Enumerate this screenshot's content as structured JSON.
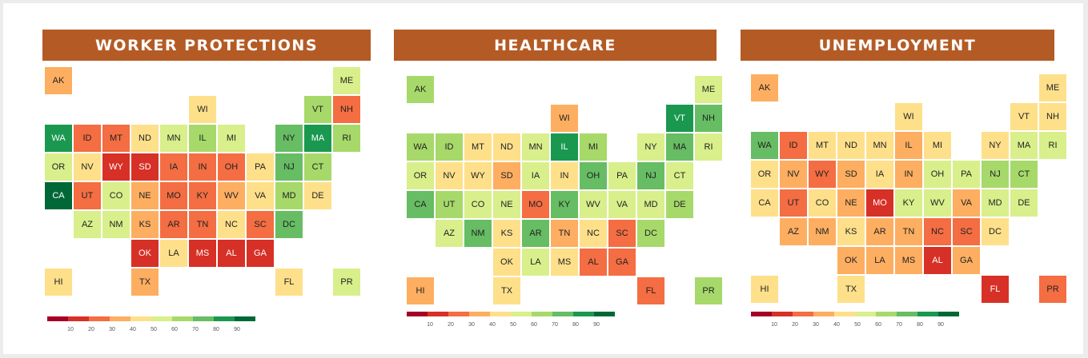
{
  "colors": {
    "scale": [
      "#a50026",
      "#d73027",
      "#f46d43",
      "#fdae61",
      "#fee08b",
      "#d9ef8b",
      "#a6d96a",
      "#66bd63",
      "#1a9850",
      "#006837"
    ],
    "banner": "#b45b25"
  },
  "legend": {
    "ticks": [
      "10",
      "20",
      "30",
      "40",
      "50",
      "60",
      "70",
      "80",
      "90"
    ]
  },
  "panels": [
    {
      "title": "WORKER PROTECTIONS",
      "states": [
        {
          "abbr": "AK",
          "col": 0,
          "row": 0,
          "level": 3
        },
        {
          "abbr": "ME",
          "col": 10,
          "row": 0,
          "level": 5
        },
        {
          "abbr": "WI",
          "col": 5,
          "row": 1,
          "level": 4
        },
        {
          "abbr": "VT",
          "col": 9,
          "row": 1,
          "level": 6
        },
        {
          "abbr": "NH",
          "col": 10,
          "row": 1,
          "level": 2
        },
        {
          "abbr": "WA",
          "col": 0,
          "row": 2,
          "level": 8
        },
        {
          "abbr": "ID",
          "col": 1,
          "row": 2,
          "level": 2
        },
        {
          "abbr": "MT",
          "col": 2,
          "row": 2,
          "level": 2
        },
        {
          "abbr": "ND",
          "col": 3,
          "row": 2,
          "level": 4
        },
        {
          "abbr": "MN",
          "col": 4,
          "row": 2,
          "level": 5
        },
        {
          "abbr": "IL",
          "col": 5,
          "row": 2,
          "level": 6
        },
        {
          "abbr": "MI",
          "col": 6,
          "row": 2,
          "level": 5
        },
        {
          "abbr": "NY",
          "col": 8,
          "row": 2,
          "level": 7
        },
        {
          "abbr": "MA",
          "col": 9,
          "row": 2,
          "level": 8
        },
        {
          "abbr": "RI",
          "col": 10,
          "row": 2,
          "level": 6
        },
        {
          "abbr": "OR",
          "col": 0,
          "row": 3,
          "level": 5
        },
        {
          "abbr": "NV",
          "col": 1,
          "row": 3,
          "level": 4
        },
        {
          "abbr": "WY",
          "col": 2,
          "row": 3,
          "level": 1
        },
        {
          "abbr": "SD",
          "col": 3,
          "row": 3,
          "level": 1
        },
        {
          "abbr": "IA",
          "col": 4,
          "row": 3,
          "level": 2
        },
        {
          "abbr": "IN",
          "col": 5,
          "row": 3,
          "level": 2
        },
        {
          "abbr": "OH",
          "col": 6,
          "row": 3,
          "level": 2
        },
        {
          "abbr": "PA",
          "col": 7,
          "row": 3,
          "level": 4
        },
        {
          "abbr": "NJ",
          "col": 8,
          "row": 3,
          "level": 7
        },
        {
          "abbr": "CT",
          "col": 9,
          "row": 3,
          "level": 6
        },
        {
          "abbr": "CA",
          "col": 0,
          "row": 4,
          "level": 9
        },
        {
          "abbr": "UT",
          "col": 1,
          "row": 4,
          "level": 2
        },
        {
          "abbr": "CO",
          "col": 2,
          "row": 4,
          "level": 5
        },
        {
          "abbr": "NE",
          "col": 3,
          "row": 4,
          "level": 3
        },
        {
          "abbr": "MO",
          "col": 4,
          "row": 4,
          "level": 2
        },
        {
          "abbr": "KY",
          "col": 5,
          "row": 4,
          "level": 2
        },
        {
          "abbr": "WV",
          "col": 6,
          "row": 4,
          "level": 3
        },
        {
          "abbr": "VA",
          "col": 7,
          "row": 4,
          "level": 4
        },
        {
          "abbr": "MD",
          "col": 8,
          "row": 4,
          "level": 6
        },
        {
          "abbr": "DE",
          "col": 9,
          "row": 4,
          "level": 4
        },
        {
          "abbr": "AZ",
          "col": 1,
          "row": 5,
          "level": 5
        },
        {
          "abbr": "NM",
          "col": 2,
          "row": 5,
          "level": 5
        },
        {
          "abbr": "KS",
          "col": 3,
          "row": 5,
          "level": 3
        },
        {
          "abbr": "AR",
          "col": 4,
          "row": 5,
          "level": 2
        },
        {
          "abbr": "TN",
          "col": 5,
          "row": 5,
          "level": 2
        },
        {
          "abbr": "NC",
          "col": 6,
          "row": 5,
          "level": 4
        },
        {
          "abbr": "SC",
          "col": 7,
          "row": 5,
          "level": 2
        },
        {
          "abbr": "DC",
          "col": 8,
          "row": 5,
          "level": 7
        },
        {
          "abbr": "OK",
          "col": 3,
          "row": 6,
          "level": 1
        },
        {
          "abbr": "LA",
          "col": 4,
          "row": 6,
          "level": 4
        },
        {
          "abbr": "MS",
          "col": 5,
          "row": 6,
          "level": 1
        },
        {
          "abbr": "AL",
          "col": 6,
          "row": 6,
          "level": 1
        },
        {
          "abbr": "GA",
          "col": 7,
          "row": 6,
          "level": 1
        },
        {
          "abbr": "HI",
          "col": 0,
          "row": 7,
          "level": 4
        },
        {
          "abbr": "TX",
          "col": 3,
          "row": 7,
          "level": 3
        },
        {
          "abbr": "FL",
          "col": 8,
          "row": 7,
          "level": 4
        },
        {
          "abbr": "PR",
          "col": 10,
          "row": 7,
          "level": 5
        }
      ]
    },
    {
      "title": "HEALTHCARE",
      "states": [
        {
          "abbr": "AK",
          "col": 0,
          "row": 0,
          "level": 6
        },
        {
          "abbr": "ME",
          "col": 10,
          "row": 0,
          "level": 5
        },
        {
          "abbr": "WI",
          "col": 5,
          "row": 1,
          "level": 3
        },
        {
          "abbr": "VT",
          "col": 9,
          "row": 1,
          "level": 8
        },
        {
          "abbr": "NH",
          "col": 10,
          "row": 1,
          "level": 7
        },
        {
          "abbr": "WA",
          "col": 0,
          "row": 2,
          "level": 6
        },
        {
          "abbr": "ID",
          "col": 1,
          "row": 2,
          "level": 6
        },
        {
          "abbr": "MT",
          "col": 2,
          "row": 2,
          "level": 4
        },
        {
          "abbr": "ND",
          "col": 3,
          "row": 2,
          "level": 4
        },
        {
          "abbr": "MN",
          "col": 4,
          "row": 2,
          "level": 5
        },
        {
          "abbr": "IL",
          "col": 5,
          "row": 2,
          "level": 8
        },
        {
          "abbr": "MI",
          "col": 6,
          "row": 2,
          "level": 6
        },
        {
          "abbr": "NY",
          "col": 8,
          "row": 2,
          "level": 5
        },
        {
          "abbr": "MA",
          "col": 9,
          "row": 2,
          "level": 7
        },
        {
          "abbr": "RI",
          "col": 10,
          "row": 2,
          "level": 5
        },
        {
          "abbr": "OR",
          "col": 0,
          "row": 3,
          "level": 5
        },
        {
          "abbr": "NV",
          "col": 1,
          "row": 3,
          "level": 4
        },
        {
          "abbr": "WY",
          "col": 2,
          "row": 3,
          "level": 4
        },
        {
          "abbr": "SD",
          "col": 3,
          "row": 3,
          "level": 3
        },
        {
          "abbr": "IA",
          "col": 4,
          "row": 3,
          "level": 5
        },
        {
          "abbr": "IN",
          "col": 5,
          "row": 3,
          "level": 4
        },
        {
          "abbr": "OH",
          "col": 6,
          "row": 3,
          "level": 7
        },
        {
          "abbr": "PA",
          "col": 7,
          "row": 3,
          "level": 5
        },
        {
          "abbr": "NJ",
          "col": 8,
          "row": 3,
          "level": 7
        },
        {
          "abbr": "CT",
          "col": 9,
          "row": 3,
          "level": 5
        },
        {
          "abbr": "CA",
          "col": 0,
          "row": 4,
          "level": 7
        },
        {
          "abbr": "UT",
          "col": 1,
          "row": 4,
          "level": 6
        },
        {
          "abbr": "CO",
          "col": 2,
          "row": 4,
          "level": 5
        },
        {
          "abbr": "NE",
          "col": 3,
          "row": 4,
          "level": 5
        },
        {
          "abbr": "MO",
          "col": 4,
          "row": 4,
          "level": 2
        },
        {
          "abbr": "KY",
          "col": 5,
          "row": 4,
          "level": 7
        },
        {
          "abbr": "WV",
          "col": 6,
          "row": 4,
          "level": 5
        },
        {
          "abbr": "VA",
          "col": 7,
          "row": 4,
          "level": 5
        },
        {
          "abbr": "MD",
          "col": 8,
          "row": 4,
          "level": 5
        },
        {
          "abbr": "DE",
          "col": 9,
          "row": 4,
          "level": 6
        },
        {
          "abbr": "AZ",
          "col": 1,
          "row": 5,
          "level": 5
        },
        {
          "abbr": "NM",
          "col": 2,
          "row": 5,
          "level": 7
        },
        {
          "abbr": "KS",
          "col": 3,
          "row": 5,
          "level": 4
        },
        {
          "abbr": "AR",
          "col": 4,
          "row": 5,
          "level": 7
        },
        {
          "abbr": "TN",
          "col": 5,
          "row": 5,
          "level": 3
        },
        {
          "abbr": "NC",
          "col": 6,
          "row": 5,
          "level": 4
        },
        {
          "abbr": "SC",
          "col": 7,
          "row": 5,
          "level": 2
        },
        {
          "abbr": "DC",
          "col": 8,
          "row": 5,
          "level": 6
        },
        {
          "abbr": "OK",
          "col": 3,
          "row": 6,
          "level": 4
        },
        {
          "abbr": "LA",
          "col": 4,
          "row": 6,
          "level": 5
        },
        {
          "abbr": "MS",
          "col": 5,
          "row": 6,
          "level": 4
        },
        {
          "abbr": "AL",
          "col": 6,
          "row": 6,
          "level": 2
        },
        {
          "abbr": "GA",
          "col": 7,
          "row": 6,
          "level": 2
        },
        {
          "abbr": "HI",
          "col": 0,
          "row": 7,
          "level": 3
        },
        {
          "abbr": "TX",
          "col": 3,
          "row": 7,
          "level": 4
        },
        {
          "abbr": "FL",
          "col": 8,
          "row": 7,
          "level": 2
        },
        {
          "abbr": "PR",
          "col": 10,
          "row": 7,
          "level": 6
        }
      ]
    },
    {
      "title": "UNEMPLOYMENT",
      "states": [
        {
          "abbr": "AK",
          "col": 0,
          "row": 0,
          "level": 3
        },
        {
          "abbr": "ME",
          "col": 10,
          "row": 0,
          "level": 4
        },
        {
          "abbr": "WI",
          "col": 5,
          "row": 1,
          "level": 4
        },
        {
          "abbr": "VT",
          "col": 9,
          "row": 1,
          "level": 4
        },
        {
          "abbr": "NH",
          "col": 10,
          "row": 1,
          "level": 4
        },
        {
          "abbr": "WA",
          "col": 0,
          "row": 2,
          "level": 7
        },
        {
          "abbr": "ID",
          "col": 1,
          "row": 2,
          "level": 2
        },
        {
          "abbr": "MT",
          "col": 2,
          "row": 2,
          "level": 4
        },
        {
          "abbr": "ND",
          "col": 3,
          "row": 2,
          "level": 4
        },
        {
          "abbr": "MN",
          "col": 4,
          "row": 2,
          "level": 4
        },
        {
          "abbr": "IL",
          "col": 5,
          "row": 2,
          "level": 3
        },
        {
          "abbr": "MI",
          "col": 6,
          "row": 2,
          "level": 4
        },
        {
          "abbr": "NY",
          "col": 8,
          "row": 2,
          "level": 4
        },
        {
          "abbr": "MA",
          "col": 9,
          "row": 2,
          "level": 5
        },
        {
          "abbr": "RI",
          "col": 10,
          "row": 2,
          "level": 5
        },
        {
          "abbr": "OR",
          "col": 0,
          "row": 3,
          "level": 4
        },
        {
          "abbr": "NV",
          "col": 1,
          "row": 3,
          "level": 3
        },
        {
          "abbr": "WY",
          "col": 2,
          "row": 3,
          "level": 2
        },
        {
          "abbr": "SD",
          "col": 3,
          "row": 3,
          "level": 3
        },
        {
          "abbr": "IA",
          "col": 4,
          "row": 3,
          "level": 4
        },
        {
          "abbr": "IN",
          "col": 5,
          "row": 3,
          "level": 3
        },
        {
          "abbr": "OH",
          "col": 6,
          "row": 3,
          "level": 5
        },
        {
          "abbr": "PA",
          "col": 7,
          "row": 3,
          "level": 5
        },
        {
          "abbr": "NJ",
          "col": 8,
          "row": 3,
          "level": 6
        },
        {
          "abbr": "CT",
          "col": 9,
          "row": 3,
          "level": 6
        },
        {
          "abbr": "CA",
          "col": 0,
          "row": 4,
          "level": 4
        },
        {
          "abbr": "UT",
          "col": 1,
          "row": 4,
          "level": 2
        },
        {
          "abbr": "CO",
          "col": 2,
          "row": 4,
          "level": 4
        },
        {
          "abbr": "NE",
          "col": 3,
          "row": 4,
          "level": 3
        },
        {
          "abbr": "MO",
          "col": 4,
          "row": 4,
          "level": 1
        },
        {
          "abbr": "KY",
          "col": 5,
          "row": 4,
          "level": 5
        },
        {
          "abbr": "WV",
          "col": 6,
          "row": 4,
          "level": 5
        },
        {
          "abbr": "VA",
          "col": 7,
          "row": 4,
          "level": 3
        },
        {
          "abbr": "MD",
          "col": 8,
          "row": 4,
          "level": 5
        },
        {
          "abbr": "DE",
          "col": 9,
          "row": 4,
          "level": 5
        },
        {
          "abbr": "AZ",
          "col": 1,
          "row": 5,
          "level": 3
        },
        {
          "abbr": "NM",
          "col": 2,
          "row": 5,
          "level": 3
        },
        {
          "abbr": "KS",
          "col": 3,
          "row": 5,
          "level": 4
        },
        {
          "abbr": "AR",
          "col": 4,
          "row": 5,
          "level": 3
        },
        {
          "abbr": "TN",
          "col": 5,
          "row": 5,
          "level": 3
        },
        {
          "abbr": "NC",
          "col": 6,
          "row": 5,
          "level": 2
        },
        {
          "abbr": "SC",
          "col": 7,
          "row": 5,
          "level": 2
        },
        {
          "abbr": "DC",
          "col": 8,
          "row": 5,
          "level": 4
        },
        {
          "abbr": "OK",
          "col": 3,
          "row": 6,
          "level": 3
        },
        {
          "abbr": "LA",
          "col": 4,
          "row": 6,
          "level": 3
        },
        {
          "abbr": "MS",
          "col": 5,
          "row": 6,
          "level": 3
        },
        {
          "abbr": "AL",
          "col": 6,
          "row": 6,
          "level": 1
        },
        {
          "abbr": "GA",
          "col": 7,
          "row": 6,
          "level": 3
        },
        {
          "abbr": "HI",
          "col": 0,
          "row": 7,
          "level": 4
        },
        {
          "abbr": "TX",
          "col": 3,
          "row": 7,
          "level": 4
        },
        {
          "abbr": "FL",
          "col": 8,
          "row": 7,
          "level": 1
        },
        {
          "abbr": "PR",
          "col": 10,
          "row": 7,
          "level": 2
        }
      ]
    }
  ]
}
